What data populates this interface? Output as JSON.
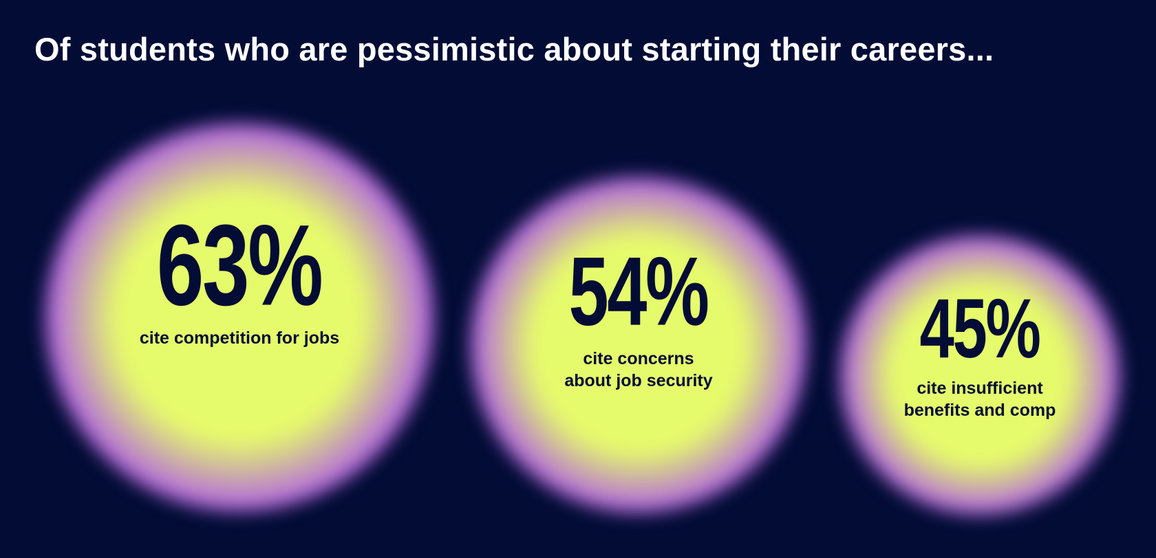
{
  "title": "Of students who are pessimistic about starting their careers...",
  "colors": {
    "background": "#020c35",
    "title_text": "#ffffff",
    "circle_core": "#e6fb6b",
    "circle_edge": "#a94cf5",
    "circle_text": "#020c35"
  },
  "chart_data": {
    "type": "bubble",
    "title": "Of students who are pessimistic about starting their careers...",
    "categories": [
      "cite competition for jobs",
      "cite concerns\nabout job security",
      "cite insufficient\nbenefits and comp"
    ],
    "values": [
      63,
      54,
      45
    ],
    "unit": "%",
    "items": [
      {
        "label": "63%",
        "value": 63,
        "caption": "cite competition for jobs"
      },
      {
        "label": "54%",
        "value": 54,
        "caption": "cite concerns\nabout job security"
      },
      {
        "label": "45%",
        "value": 45,
        "caption": "cite insufficient\nbenefits and comp"
      }
    ]
  }
}
